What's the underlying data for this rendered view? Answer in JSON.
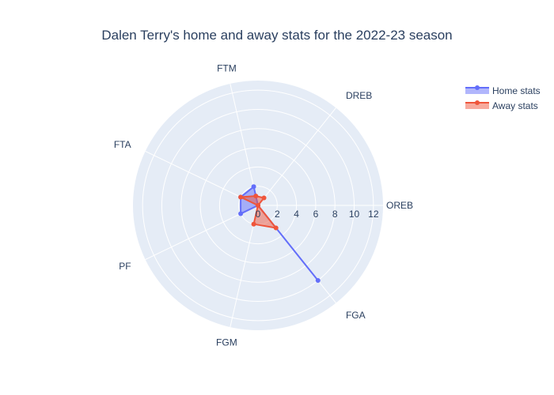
{
  "chart_data": {
    "type": "radar",
    "title": "Dalen Terry's home and away stats for the 2022-23 season",
    "categories": [
      "OREB",
      "DREB",
      "FTM",
      "FTA",
      "PF",
      "FGM",
      "FGA"
    ],
    "radial_ticks": [
      "0",
      "2",
      "4",
      "6",
      "8",
      "10",
      "12"
    ],
    "radial_range": [
      0,
      13
    ],
    "grid": true,
    "legend_position": "top-right",
    "series": [
      {
        "name": "Home stats",
        "color": "#636efa",
        "values": [
          0,
          0,
          2,
          2,
          2,
          0,
          10
        ]
      },
      {
        "name": "Away stats",
        "color": "#ef553b",
        "values": [
          0,
          1,
          1,
          2,
          0,
          2,
          3
        ]
      }
    ]
  }
}
